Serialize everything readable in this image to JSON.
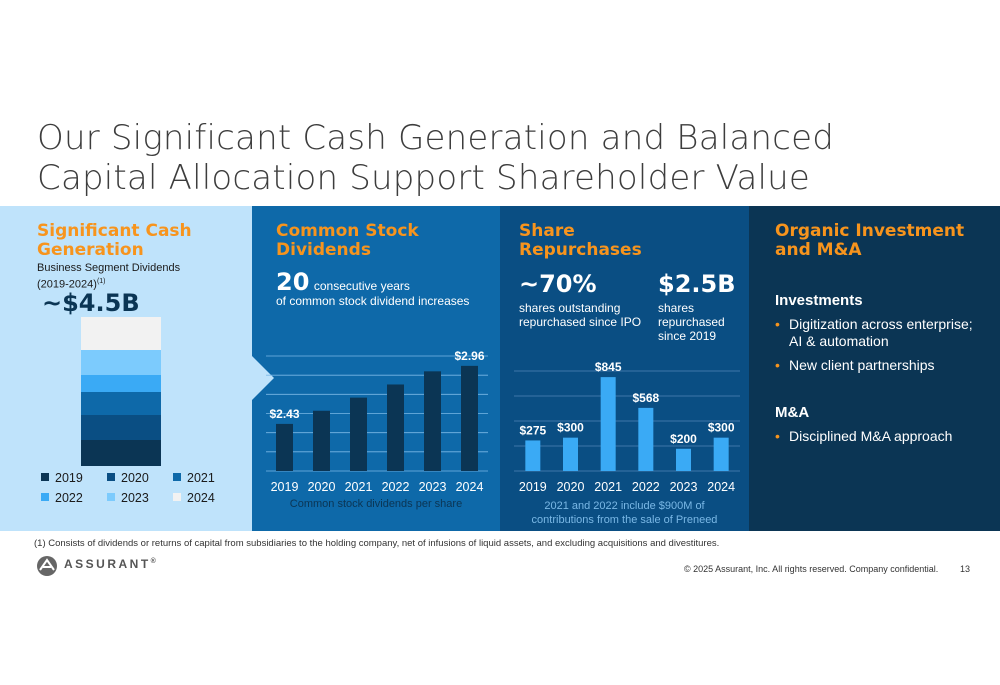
{
  "title": {
    "line1": "Our Significant Cash Generation and Balanced",
    "line2": "Capital Allocation Support Shareholder Value"
  },
  "panel1": {
    "heading_line1": "Significant Cash",
    "heading_line2": "Generation",
    "sub_line1": "Business Segment Dividends",
    "sub_line2": "(2019-2024)",
    "sub_footnote": "(1)",
    "big_value": "~$4.5B",
    "legend": [
      {
        "label": "2019",
        "color": "#0b3554"
      },
      {
        "label": "2020",
        "color": "#0a4e83"
      },
      {
        "label": "2021",
        "color": "#0e69a9"
      },
      {
        "label": "2022",
        "color": "#3aaaf5"
      },
      {
        "label": "2023",
        "color": "#7ccbfd"
      },
      {
        "label": "2024",
        "color": "#f2f2f2"
      }
    ]
  },
  "panel2": {
    "heading_line1": "Common Stock",
    "heading_line2": "Dividends",
    "big_number": "20",
    "big_text": "consecutive years",
    "line2": "of common stock dividend increases",
    "caption": "Common stock dividends per share"
  },
  "panel3": {
    "heading_line1": "Share",
    "heading_line2": "Repurchases",
    "stat1_value": "~70%",
    "stat1_text": "shares outstanding repurchased since IPO",
    "stat2_value": "$2.5B",
    "stat2_text": "shares repurchased since 2019",
    "caption_line1": "2021 and 2022 include $900M of",
    "caption_line2": "contributions from the sale of Preneed"
  },
  "panel4": {
    "heading_line1": "Organic Investment",
    "heading_line2": "and M&A",
    "investments_label": "Investments",
    "investments": [
      "Digitization across enterprise; AI & automation",
      "New client partnerships"
    ],
    "ma_label": "M&A",
    "ma_items": [
      "Disciplined M&A approach"
    ],
    "bullet": "•"
  },
  "chart_data": [
    {
      "type": "bar",
      "stacked": true,
      "title": "Business Segment Dividends (2019-2024)",
      "series": [
        {
          "name": "2019",
          "values": [
            0.77
          ]
        },
        {
          "name": "2020",
          "values": [
            0.76
          ]
        },
        {
          "name": "2021",
          "values": [
            0.69
          ]
        },
        {
          "name": "2022",
          "values": [
            0.53
          ]
        },
        {
          "name": "2023",
          "values": [
            0.76
          ]
        },
        {
          "name": "2024",
          "values": [
            0.99
          ]
        }
      ],
      "total_label": "~$4.5B",
      "colors": [
        "#0b3554",
        "#0a4e83",
        "#0e69a9",
        "#3aaaf5",
        "#7ccbfd",
        "#f2f2f2"
      ]
    },
    {
      "type": "bar",
      "title": "Common stock dividends per share",
      "categories": [
        "2019",
        "2020",
        "2021",
        "2022",
        "2023",
        "2024"
      ],
      "values": [
        2.43,
        2.55,
        2.67,
        2.79,
        2.91,
        2.96
      ],
      "data_labels": [
        "$2.43",
        "",
        "",
        "",
        "",
        "$2.96"
      ],
      "ylim": [
        2.0,
        3.05
      ],
      "grid": true,
      "bar_color": "#0b3554"
    },
    {
      "type": "bar",
      "title": "Share Repurchases",
      "categories": [
        "2019",
        "2020",
        "2021",
        "2022",
        "2023",
        "2024"
      ],
      "values": [
        275,
        300,
        845,
        568,
        200,
        300
      ],
      "data_labels": [
        "$275",
        "$300",
        "$845",
        "$568",
        "$200",
        "$300"
      ],
      "ylim": [
        0,
        900
      ],
      "grid": true,
      "bar_color": "#3aaaf5"
    }
  ],
  "footer": {
    "footnote": "(1)    Consists of dividends or returns of capital from subsidiaries to the holding company, net of infusions of liquid assets, and excluding acquisitions and divestitures.",
    "logo_text": "ASSURANT",
    "logo_mark": "®",
    "copyright": "© 2025 Assurant, Inc. All rights reserved. Company confidential.",
    "page_number": "13"
  }
}
